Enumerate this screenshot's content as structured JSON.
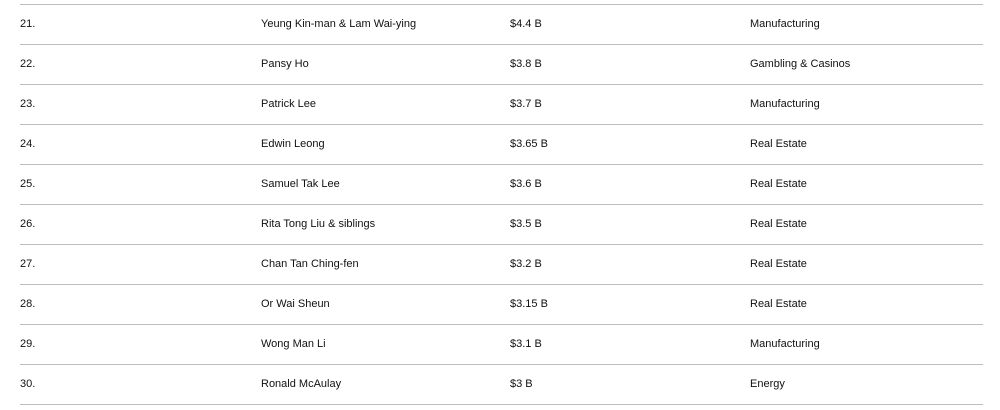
{
  "rows": [
    {
      "rank": "21.",
      "name": "Yeung Kin-man & Lam Wai-ying",
      "net_worth": "$4.4 B",
      "industry": "Manufacturing"
    },
    {
      "rank": "22.",
      "name": "Pansy Ho",
      "net_worth": "$3.8 B",
      "industry": "Gambling & Casinos"
    },
    {
      "rank": "23.",
      "name": "Patrick Lee",
      "net_worth": "$3.7 B",
      "industry": "Manufacturing"
    },
    {
      "rank": "24.",
      "name": "Edwin Leong",
      "net_worth": "$3.65 B",
      "industry": "Real Estate"
    },
    {
      "rank": "25.",
      "name": "Samuel Tak Lee",
      "net_worth": "$3.6 B",
      "industry": "Real Estate"
    },
    {
      "rank": "26.",
      "name": "Rita Tong Liu & siblings",
      "net_worth": "$3.5 B",
      "industry": "Real Estate"
    },
    {
      "rank": "27.",
      "name": "Chan Tan Ching-fen",
      "net_worth": "$3.2 B",
      "industry": "Real Estate"
    },
    {
      "rank": "28.",
      "name": "Or Wai Sheun",
      "net_worth": "$3.15 B",
      "industry": "Real Estate"
    },
    {
      "rank": "29.",
      "name": "Wong Man Li",
      "net_worth": "$3.1 B",
      "industry": "Manufacturing"
    },
    {
      "rank": "30.",
      "name": "Ronald McAulay",
      "net_worth": "$3 B",
      "industry": "Energy"
    }
  ]
}
